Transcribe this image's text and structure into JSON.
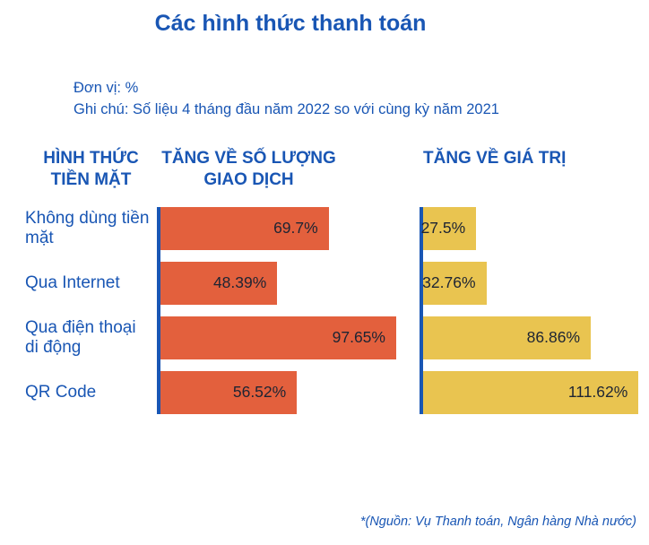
{
  "title": "Các hình thức thanh toán",
  "notes": {
    "unit": "Đơn vị: %",
    "comparison": "Ghi chú: Số liệu 4 tháng đầu năm 2022 so với cùng kỳ năm 2021"
  },
  "row_header": "HÌNH THỨC TIỀN MẶT",
  "source": "*(Nguồn: Vụ Thanh toán, Ngân hàng Nhà nước)",
  "colors": {
    "blue": "#1956b4",
    "orange": "#e3603d",
    "yellow": "#e9c450",
    "value_text": "#1d2433"
  },
  "chart_data": {
    "type": "bar",
    "orientation": "horizontal",
    "unit": "%",
    "title": "Các hình thức thanh toán",
    "categories": [
      "Không dùng tiền mặt",
      "Qua Internet",
      "Qua điện thoại di động",
      "QR Code"
    ],
    "series": [
      {
        "name": "TĂNG VỀ SỐ LƯỢNG GIAO DỊCH",
        "values": [
          69.7,
          48.39,
          97.65,
          56.52
        ],
        "labels": [
          "69.7%",
          "48.39%",
          "97.65%",
          "56.52%"
        ],
        "color": "#e3603d"
      },
      {
        "name": "TĂNG VỀ GIÁ TRỊ",
        "values": [
          27.5,
          32.76,
          86.86,
          111.62
        ],
        "labels": [
          "27.5%",
          "32.76%",
          "86.86%",
          "111.62%"
        ],
        "color": "#e9c450"
      }
    ]
  }
}
